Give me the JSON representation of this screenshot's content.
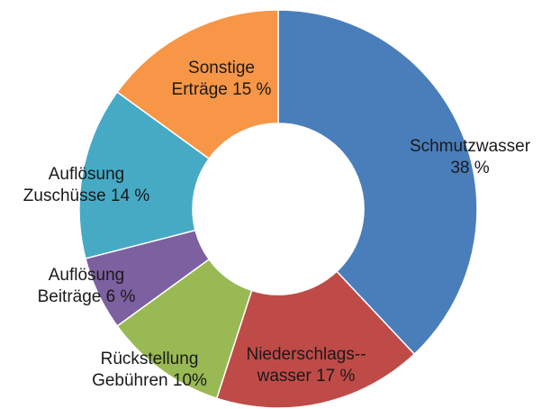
{
  "chart_data": {
    "type": "donut",
    "categories": [
      "Schmutzwasser",
      "Niederschlags--wasser",
      "Rückstellung Gebühren",
      "Auflösung Beiträge",
      "Auflösung Zuschüsse",
      "Sonstige Erträge"
    ],
    "values": [
      38,
      17,
      10,
      6,
      14,
      15
    ],
    "value_labels": [
      "38 %",
      "17 %",
      "10%",
      "6 %",
      "14 %",
      "15 %"
    ],
    "colors": [
      "#4a7ebb",
      "#be4b48",
      "#98b954",
      "#7d60a0",
      "#46aac5",
      "#f79646"
    ]
  }
}
